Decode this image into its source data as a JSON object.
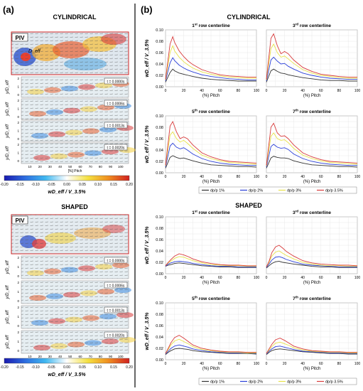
{
  "panel_a": {
    "label": "(a)",
    "sections": [
      {
        "title": "CYLINDRICAL",
        "piv_label": "PIV",
        "deff_label": "D_eff",
        "strips": [
          {
            "time": "t = 0.0000s",
            "ylabel": "y/D_eff"
          },
          {
            "time": "t = 0.0006s",
            "ylabel": "y/D_eff"
          },
          {
            "time": "t = 0.0013s",
            "ylabel": "y/D_eff"
          },
          {
            "time": "t = 0.0020s",
            "ylabel": "y/D_eff"
          }
        ],
        "yticks": [
          "2",
          "1",
          "0"
        ],
        "xticks": [
          "10",
          "20",
          "30",
          "40",
          "50",
          "60",
          "70",
          "80",
          "90",
          "100"
        ],
        "xlabel": "[%] Pitch"
      },
      {
        "title": "SHAPED",
        "piv_label": "PIV",
        "strips": [
          {
            "time": "t = 0.0000s",
            "ylabel": "y/D_eff"
          },
          {
            "time": "t = 0.0006s",
            "ylabel": "y/D_eff"
          },
          {
            "time": "t = 0.0013s",
            "ylabel": "y/D_eff"
          },
          {
            "time": "t = 0.0020s",
            "ylabel": "y/D_eff"
          }
        ],
        "yticks": [
          "2",
          "1",
          "0"
        ],
        "xticks": [
          "10",
          "20",
          "30",
          "40",
          "50",
          "60",
          "70",
          "80",
          "90",
          "100"
        ],
        "xlabel": "[%] Pitch"
      }
    ],
    "colorbar": {
      "ticks": [
        "-0.20",
        "-0.15",
        "-0.10",
        "-0.05",
        "0.00",
        "0.05",
        "0.10",
        "0.15",
        "0.20"
      ],
      "label": "wD_eff / V_3.5%",
      "colors": [
        "#1a1ab0",
        "#2e6fe0",
        "#40b8f0",
        "#ffffff",
        "#f4e040",
        "#f09020",
        "#d02020"
      ]
    }
  },
  "panel_b": {
    "label": "(b)",
    "y_axis_label": "wD_eff / V_3.5%",
    "x_axis_label": "(%) Pitch",
    "legend": [
      "dp/p 1%",
      "dp/p 2%",
      "dp/p 3%",
      "dp/p 3.5%"
    ],
    "series_colors": [
      "#333333",
      "#2a3fd8",
      "#e8e24a",
      "#d83a3a"
    ],
    "yticks": [
      "0.00",
      "0.02",
      "0.04",
      "0.06",
      "0.08",
      "0.10"
    ],
    "xticks": [
      "0",
      "20",
      "40",
      "60",
      "80",
      "100"
    ],
    "groups": [
      {
        "title": "CYLINDRICAL",
        "row_prefixes": [
          "1",
          "3",
          "5",
          "7"
        ],
        "row_suffixes": [
          "st",
          "rd",
          "th",
          "th"
        ],
        "row_text": "row centerline"
      },
      {
        "title": "SHAPED",
        "row_prefixes": [
          "1",
          "3",
          "5",
          "7"
        ],
        "row_suffixes": [
          "st",
          "rd",
          "th",
          "th"
        ],
        "row_text": "row centerline"
      }
    ]
  },
  "chart_data": [
    {
      "type": "line",
      "title": "1st row centerline",
      "group": "CYLINDRICAL",
      "xlabel": "(%) Pitch",
      "ylabel": "wD_eff / V_3.5%",
      "xlim": [
        0,
        100
      ],
      "ylim": [
        0,
        0.1
      ],
      "grid": true,
      "x": [
        0,
        5,
        8,
        10,
        15,
        20,
        25,
        30,
        40,
        50,
        60,
        70,
        80,
        90,
        100
      ],
      "series": [
        {
          "name": "dp/p 1%",
          "values": [
            0.008,
            0.025,
            0.031,
            0.028,
            0.024,
            0.022,
            0.02,
            0.018,
            0.015,
            0.013,
            0.012,
            0.011,
            0.01,
            0.01,
            0.01
          ]
        },
        {
          "name": "dp/p 2%",
          "values": [
            0.01,
            0.042,
            0.051,
            0.046,
            0.038,
            0.033,
            0.029,
            0.026,
            0.021,
            0.018,
            0.016,
            0.014,
            0.013,
            0.012,
            0.012
          ]
        },
        {
          "name": "dp/p 3%",
          "values": [
            0.012,
            0.06,
            0.072,
            0.063,
            0.052,
            0.044,
            0.038,
            0.033,
            0.026,
            0.022,
            0.019,
            0.017,
            0.016,
            0.015,
            0.015
          ]
        },
        {
          "name": "dp/p 3.5%",
          "values": [
            0.013,
            0.075,
            0.088,
            0.078,
            0.063,
            0.053,
            0.045,
            0.039,
            0.03,
            0.025,
            0.021,
            0.019,
            0.018,
            0.017,
            0.017
          ]
        }
      ]
    },
    {
      "type": "line",
      "title": "3rd row centerline",
      "group": "CYLINDRICAL",
      "xlabel": "(%) Pitch",
      "ylabel": "wD_eff / V_3.5%",
      "xlim": [
        0,
        100
      ],
      "ylim": [
        0,
        0.1
      ],
      "grid": true,
      "x": [
        0,
        5,
        8,
        12,
        16,
        20,
        24,
        30,
        40,
        50,
        60,
        70,
        80,
        90,
        100
      ],
      "series": [
        {
          "name": "dp/p 1%",
          "values": [
            0.008,
            0.028,
            0.031,
            0.027,
            0.024,
            0.023,
            0.021,
            0.019,
            0.016,
            0.014,
            0.012,
            0.011,
            0.011,
            0.01,
            0.01
          ]
        },
        {
          "name": "dp/p 2%",
          "values": [
            0.01,
            0.047,
            0.052,
            0.045,
            0.04,
            0.041,
            0.036,
            0.031,
            0.024,
            0.02,
            0.017,
            0.015,
            0.014,
            0.013,
            0.013
          ]
        },
        {
          "name": "dp/p 3%",
          "values": [
            0.012,
            0.067,
            0.075,
            0.06,
            0.052,
            0.054,
            0.049,
            0.041,
            0.03,
            0.024,
            0.02,
            0.018,
            0.016,
            0.015,
            0.015
          ]
        },
        {
          "name": "dp/p 3.5%",
          "values": [
            0.013,
            0.085,
            0.093,
            0.072,
            0.058,
            0.062,
            0.058,
            0.047,
            0.034,
            0.027,
            0.022,
            0.02,
            0.018,
            0.017,
            0.017
          ]
        }
      ]
    },
    {
      "type": "line",
      "title": "5th row centerline",
      "group": "CYLINDRICAL",
      "xlabel": "(%) Pitch",
      "ylabel": "wD_eff / V_3.5%",
      "xlim": [
        0,
        100
      ],
      "ylim": [
        0,
        0.1
      ],
      "grid": true,
      "x": [
        0,
        5,
        8,
        12,
        16,
        20,
        24,
        30,
        40,
        50,
        60,
        70,
        80,
        90,
        100
      ],
      "series": [
        {
          "name": "dp/p 1%",
          "values": [
            0.008,
            0.027,
            0.03,
            0.027,
            0.025,
            0.026,
            0.024,
            0.021,
            0.017,
            0.014,
            0.013,
            0.012,
            0.011,
            0.011,
            0.01
          ]
        },
        {
          "name": "dp/p 2%",
          "values": [
            0.01,
            0.047,
            0.052,
            0.045,
            0.042,
            0.044,
            0.04,
            0.033,
            0.025,
            0.02,
            0.017,
            0.015,
            0.014,
            0.013,
            0.013
          ]
        },
        {
          "name": "dp/p 3%",
          "values": [
            0.012,
            0.066,
            0.072,
            0.06,
            0.054,
            0.057,
            0.052,
            0.043,
            0.031,
            0.025,
            0.021,
            0.018,
            0.017,
            0.016,
            0.015
          ]
        },
        {
          "name": "dp/p 3.5%",
          "values": [
            0.013,
            0.082,
            0.09,
            0.072,
            0.06,
            0.063,
            0.06,
            0.049,
            0.035,
            0.028,
            0.023,
            0.02,
            0.019,
            0.018,
            0.017
          ]
        }
      ]
    },
    {
      "type": "line",
      "title": "7th row centerline",
      "group": "CYLINDRICAL",
      "xlabel": "(%) Pitch",
      "ylabel": "wD_eff / V_3.5%",
      "xlim": [
        0,
        100
      ],
      "ylim": [
        0,
        0.1
      ],
      "grid": true,
      "x": [
        0,
        5,
        8,
        12,
        16,
        20,
        24,
        30,
        40,
        50,
        60,
        70,
        80,
        90,
        100
      ],
      "series": [
        {
          "name": "dp/p 1%",
          "values": [
            0.008,
            0.026,
            0.029,
            0.027,
            0.026,
            0.026,
            0.025,
            0.021,
            0.017,
            0.014,
            0.013,
            0.012,
            0.011,
            0.011,
            0.01
          ]
        },
        {
          "name": "dp/p 2%",
          "values": [
            0.01,
            0.046,
            0.05,
            0.045,
            0.043,
            0.044,
            0.041,
            0.033,
            0.025,
            0.02,
            0.017,
            0.015,
            0.014,
            0.013,
            0.013
          ]
        },
        {
          "name": "dp/p 3%",
          "values": [
            0.012,
            0.064,
            0.07,
            0.06,
            0.057,
            0.058,
            0.053,
            0.043,
            0.031,
            0.025,
            0.021,
            0.018,
            0.017,
            0.016,
            0.015
          ]
        },
        {
          "name": "dp/p 3.5%",
          "values": [
            0.013,
            0.08,
            0.087,
            0.07,
            0.064,
            0.065,
            0.06,
            0.049,
            0.035,
            0.028,
            0.023,
            0.02,
            0.019,
            0.018,
            0.017
          ]
        }
      ]
    },
    {
      "type": "line",
      "title": "1st row centerline",
      "group": "SHAPED",
      "xlabel": "(%) Pitch",
      "ylabel": "wD_eff / V_3.5%",
      "xlim": [
        0,
        100
      ],
      "ylim": [
        0,
        0.1
      ],
      "grid": true,
      "x": [
        0,
        3,
        6,
        10,
        15,
        20,
        25,
        30,
        40,
        50,
        60,
        70,
        80,
        90,
        100
      ],
      "series": [
        {
          "name": "dp/p 1%",
          "values": [
            0.013,
            0.015,
            0.016,
            0.018,
            0.019,
            0.018,
            0.017,
            0.016,
            0.014,
            0.013,
            0.012,
            0.012,
            0.011,
            0.011,
            0.011
          ]
        },
        {
          "name": "dp/p 2%",
          "values": [
            0.013,
            0.017,
            0.019,
            0.021,
            0.022,
            0.021,
            0.02,
            0.018,
            0.016,
            0.014,
            0.013,
            0.013,
            0.012,
            0.012,
            0.012
          ]
        },
        {
          "name": "dp/p 3%",
          "values": [
            0.014,
            0.019,
            0.022,
            0.027,
            0.03,
            0.029,
            0.026,
            0.023,
            0.019,
            0.016,
            0.015,
            0.014,
            0.014,
            0.013,
            0.013
          ]
        },
        {
          "name": "dp/p 3.5%",
          "values": [
            0.014,
            0.02,
            0.025,
            0.031,
            0.035,
            0.033,
            0.03,
            0.026,
            0.021,
            0.018,
            0.016,
            0.015,
            0.015,
            0.014,
            0.014
          ]
        }
      ]
    },
    {
      "type": "line",
      "title": "3rd row centerline",
      "group": "SHAPED",
      "xlabel": "(%) Pitch",
      "ylabel": "wD_eff / V_3.5%",
      "xlim": [
        0,
        100
      ],
      "ylim": [
        0,
        0.1
      ],
      "grid": true,
      "x": [
        0,
        3,
        6,
        10,
        14,
        18,
        22,
        30,
        40,
        50,
        60,
        70,
        80,
        90,
        100
      ],
      "series": [
        {
          "name": "dp/p 1%",
          "values": [
            0.01,
            0.014,
            0.018,
            0.021,
            0.022,
            0.02,
            0.019,
            0.017,
            0.015,
            0.013,
            0.012,
            0.012,
            0.011,
            0.011,
            0.011
          ]
        },
        {
          "name": "dp/p 2%",
          "values": [
            0.011,
            0.017,
            0.024,
            0.029,
            0.03,
            0.028,
            0.025,
            0.021,
            0.017,
            0.015,
            0.014,
            0.013,
            0.012,
            0.012,
            0.012
          ]
        },
        {
          "name": "dp/p 3%",
          "values": [
            0.012,
            0.02,
            0.031,
            0.038,
            0.04,
            0.036,
            0.032,
            0.026,
            0.02,
            0.017,
            0.015,
            0.014,
            0.014,
            0.013,
            0.013
          ]
        },
        {
          "name": "dp/p 3.5%",
          "values": [
            0.012,
            0.022,
            0.037,
            0.047,
            0.05,
            0.045,
            0.039,
            0.031,
            0.023,
            0.019,
            0.017,
            0.016,
            0.015,
            0.015,
            0.014
          ]
        }
      ]
    },
    {
      "type": "line",
      "title": "5th row centerline",
      "group": "SHAPED",
      "xlabel": "(%) Pitch",
      "ylabel": "wD_eff / V_3.5%",
      "xlim": [
        0,
        100
      ],
      "ylim": [
        0,
        0.1
      ],
      "grid": true,
      "x": [
        0,
        3,
        6,
        10,
        15,
        20,
        25,
        30,
        40,
        50,
        60,
        70,
        80,
        90,
        100
      ],
      "series": [
        {
          "name": "dp/p 1%",
          "values": [
            0.009,
            0.013,
            0.016,
            0.019,
            0.02,
            0.019,
            0.018,
            0.016,
            0.014,
            0.013,
            0.012,
            0.011,
            0.011,
            0.011,
            0.01
          ]
        },
        {
          "name": "dp/p 2%",
          "values": [
            0.01,
            0.015,
            0.02,
            0.024,
            0.026,
            0.024,
            0.022,
            0.019,
            0.016,
            0.014,
            0.013,
            0.012,
            0.012,
            0.012,
            0.011
          ]
        },
        {
          "name": "dp/p 3%",
          "values": [
            0.011,
            0.018,
            0.026,
            0.033,
            0.036,
            0.032,
            0.028,
            0.023,
            0.018,
            0.016,
            0.014,
            0.013,
            0.013,
            0.012,
            0.012
          ]
        },
        {
          "name": "dp/p 3.5%",
          "values": [
            0.011,
            0.02,
            0.03,
            0.039,
            0.043,
            0.038,
            0.032,
            0.026,
            0.02,
            0.017,
            0.015,
            0.014,
            0.014,
            0.013,
            0.013
          ]
        }
      ]
    },
    {
      "type": "line",
      "title": "7th row centerline",
      "group": "SHAPED",
      "xlabel": "(%) Pitch",
      "ylabel": "wD_eff / V_3.5%",
      "xlim": [
        0,
        100
      ],
      "ylim": [
        0,
        0.1
      ],
      "grid": true,
      "x": [
        0,
        3,
        6,
        10,
        15,
        20,
        25,
        30,
        40,
        50,
        60,
        70,
        80,
        90,
        100
      ],
      "series": [
        {
          "name": "dp/p 1%",
          "values": [
            0.009,
            0.013,
            0.016,
            0.018,
            0.019,
            0.018,
            0.017,
            0.016,
            0.014,
            0.013,
            0.012,
            0.011,
            0.011,
            0.01,
            0.01
          ]
        },
        {
          "name": "dp/p 2%",
          "values": [
            0.01,
            0.015,
            0.019,
            0.023,
            0.024,
            0.022,
            0.02,
            0.018,
            0.015,
            0.014,
            0.013,
            0.012,
            0.012,
            0.011,
            0.011
          ]
        },
        {
          "name": "dp/p 3%",
          "values": [
            0.011,
            0.017,
            0.023,
            0.029,
            0.031,
            0.028,
            0.025,
            0.021,
            0.017,
            0.015,
            0.014,
            0.013,
            0.013,
            0.012,
            0.012
          ]
        },
        {
          "name": "dp/p 3.5%",
          "values": [
            0.011,
            0.019,
            0.027,
            0.035,
            0.038,
            0.034,
            0.029,
            0.024,
            0.019,
            0.016,
            0.015,
            0.014,
            0.014,
            0.013,
            0.013
          ]
        }
      ]
    }
  ]
}
